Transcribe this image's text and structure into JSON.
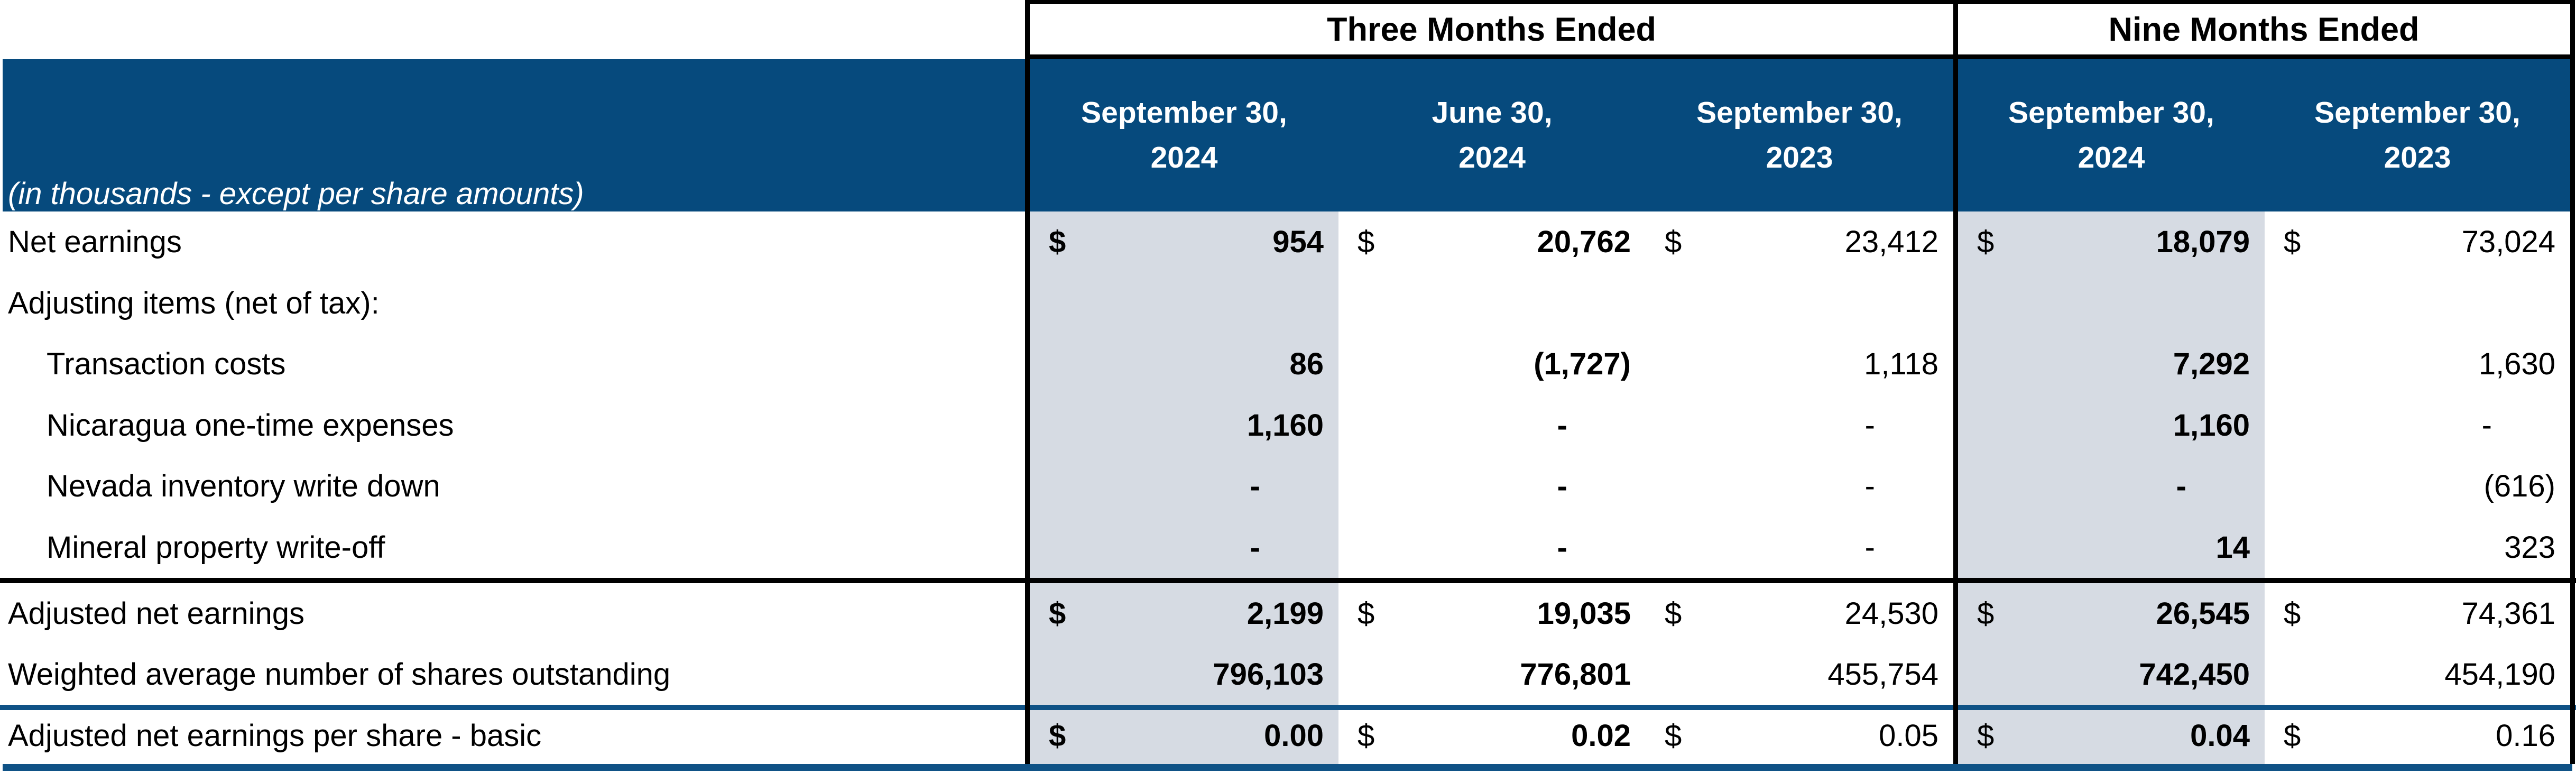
{
  "colors": {
    "header_blue": "#064A7D",
    "column_shade": "#D6DBE3",
    "rule_blue": "#0F5286",
    "rule_black": "#000000"
  },
  "group_headers": [
    {
      "label": "Three Months Ended"
    },
    {
      "label": "Nine Months Ended"
    }
  ],
  "unit_note": "(in thousands - except per share amounts)",
  "columns": [
    {
      "line1": "September 30,",
      "line2": "2024"
    },
    {
      "line1": "June 30,",
      "line2": "2024"
    },
    {
      "line1": "September 30,",
      "line2": "2023"
    },
    {
      "line1": "September 30,",
      "line2": "2024"
    },
    {
      "line1": "September 30,",
      "line2": "2023"
    }
  ],
  "rows": [
    {
      "label": "Net earnings",
      "cells": [
        {
          "cur": "$",
          "val": "954"
        },
        {
          "cur": "$",
          "val": "20,762"
        },
        {
          "cur": "$",
          "val": "23,412"
        },
        {
          "cur": "$",
          "val": "18,079"
        },
        {
          "cur": "$",
          "val": "73,024"
        }
      ]
    },
    {
      "label": "Adjusting items (net of tax):"
    },
    {
      "label": "Transaction costs",
      "cells": [
        {
          "val": "86"
        },
        {
          "val": "(1,727)"
        },
        {
          "val": "1,118"
        },
        {
          "val": "7,292"
        },
        {
          "val": "1,630"
        }
      ]
    },
    {
      "label": "Nicaragua one-time expenses",
      "cells": [
        {
          "val": "1,160"
        },
        {
          "val": "-"
        },
        {
          "val": "-"
        },
        {
          "val": "1,160"
        },
        {
          "val": "-"
        }
      ]
    },
    {
      "label": "Nevada inventory write down",
      "cells": [
        {
          "val": "-"
        },
        {
          "val": "-"
        },
        {
          "val": "-"
        },
        {
          "val": "-"
        },
        {
          "val": "(616)"
        }
      ]
    },
    {
      "label": "Mineral property write-off",
      "cells": [
        {
          "val": "-"
        },
        {
          "val": "-"
        },
        {
          "val": "-"
        },
        {
          "val": "14"
        },
        {
          "val": "323"
        }
      ]
    },
    {
      "label": "Adjusted net earnings",
      "cells": [
        {
          "cur": "$",
          "val": "2,199"
        },
        {
          "cur": "$",
          "val": "19,035"
        },
        {
          "cur": "$",
          "val": "24,530"
        },
        {
          "cur": "$",
          "val": "26,545"
        },
        {
          "cur": "$",
          "val": "74,361"
        }
      ]
    },
    {
      "label": "Weighted average number of shares outstanding",
      "cells": [
        {
          "val": "796,103"
        },
        {
          "val": "776,801"
        },
        {
          "val": "455,754"
        },
        {
          "val": "742,450"
        },
        {
          "val": "454,190"
        }
      ]
    },
    {
      "label": "Adjusted net earnings per share - basic",
      "cells": [
        {
          "cur": "$",
          "val": "0.00"
        },
        {
          "cur": "$",
          "val": "0.02"
        },
        {
          "cur": "$",
          "val": "0.05"
        },
        {
          "cur": "$",
          "val": "0.04"
        },
        {
          "cur": "$",
          "val": "0.16"
        }
      ]
    }
  ]
}
